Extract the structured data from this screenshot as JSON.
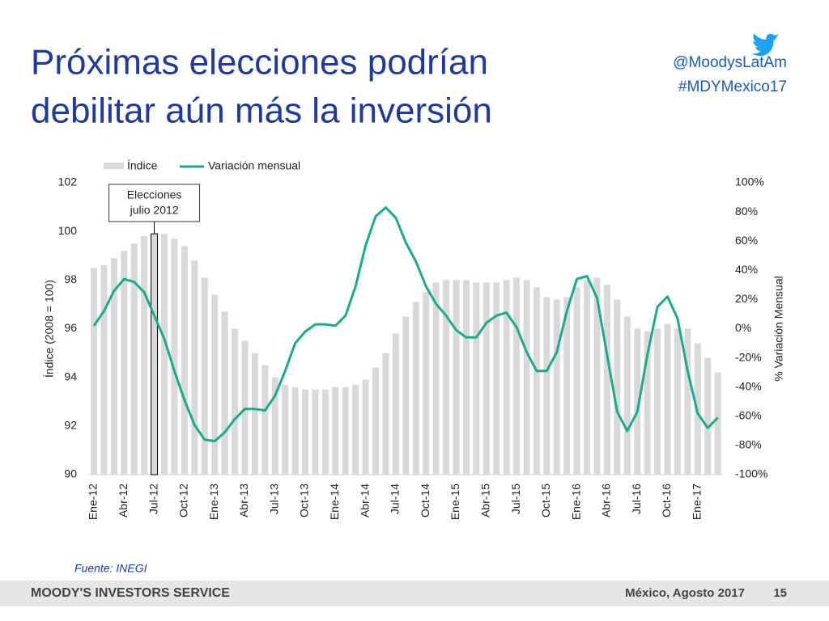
{
  "slide": {
    "title": [
      "Próximas elecciones podrían",
      "debilitar aún más la inversión"
    ],
    "handles": [
      "@MoodysLatAm",
      "#MDYMexico17"
    ],
    "source": "Fuente: INEGI",
    "footer_brand": "MOODY'S INVESTORS SERVICE",
    "footer_place": "México, Agosto 2017",
    "page": "15"
  },
  "chart_data": {
    "type": "bar",
    "categories": [
      "Ene-12",
      null,
      null,
      "Abr-12",
      null,
      null,
      "Jul-12",
      null,
      null,
      "Oct-12",
      null,
      null,
      "Ene-13",
      null,
      null,
      "Abr-13",
      null,
      null,
      "Jul-13",
      null,
      null,
      "Oct-13",
      null,
      null,
      "Ene-14",
      null,
      null,
      "Abr-14",
      null,
      null,
      "Jul-14",
      null,
      null,
      "Oct-14",
      null,
      null,
      "Ene-15",
      null,
      null,
      "Abr-15",
      null,
      null,
      "Jul-15",
      null,
      null,
      "Oct-15",
      null,
      null,
      "Ene-16",
      null,
      null,
      "Abr-16",
      null,
      null,
      "Jul-16",
      null,
      null,
      "Oct-16",
      null,
      null,
      "Ene-17",
      null,
      null
    ],
    "series": [
      {
        "name": "Índice",
        "color": "#d9d9d9",
        "values": [
          98.5,
          98.6,
          98.9,
          99.2,
          99.5,
          99.8,
          99.9,
          99.9,
          99.7,
          99.4,
          98.8,
          98.1,
          97.4,
          96.7,
          96.0,
          95.5,
          95.0,
          94.5,
          94.0,
          93.7,
          93.6,
          93.5,
          93.5,
          93.5,
          93.6,
          93.6,
          93.7,
          93.9,
          94.4,
          95.0,
          95.8,
          96.5,
          97.1,
          97.5,
          97.9,
          98.0,
          98.0,
          98.0,
          97.9,
          97.9,
          97.9,
          98.0,
          98.1,
          98.0,
          97.7,
          97.3,
          97.2,
          97.3,
          97.7,
          98.0,
          98.1,
          97.8,
          97.2,
          96.5,
          96.0,
          95.9,
          96.0,
          96.2,
          96.0,
          96.0,
          95.4,
          94.8,
          94.2
        ]
      },
      {
        "name": "Variación mensual",
        "color": "#1aab8a",
        "axis": "y2",
        "values": [
          2,
          12,
          26,
          34,
          32,
          25,
          9,
          -7,
          -29,
          -49,
          -66,
          -76,
          -77,
          -71,
          -62,
          -55,
          -55,
          -56,
          -46,
          -29,
          -10,
          -2,
          3,
          3,
          2,
          9,
          29,
          57,
          77,
          83,
          76,
          59,
          46,
          29,
          17,
          9,
          -1,
          -6,
          -6,
          4,
          9,
          11,
          1,
          -16,
          -29,
          -29,
          -16,
          12,
          34,
          36,
          21,
          -18,
          -57,
          -70,
          -57,
          -18,
          15,
          22,
          7,
          -29,
          -58,
          -68,
          -61
        ]
      }
    ],
    "ylabel": "Índice (2008 = 100)",
    "y2label": "% Variación Mensual",
    "ylim": [
      90,
      102
    ],
    "yticks": [
      90,
      92,
      94,
      96,
      98,
      100,
      102
    ],
    "y2lim": [
      -100,
      100
    ],
    "y2ticks": [
      {
        "value": -100,
        "label": "-100%"
      },
      {
        "value": -80,
        "label": "-80%"
      },
      {
        "value": -60,
        "label": "-60%"
      },
      {
        "value": -40,
        "label": "-40%"
      },
      {
        "value": -20,
        "label": "-20%"
      },
      {
        "value": 0,
        "label": "0%"
      },
      {
        "value": 20,
        "label": "20%"
      },
      {
        "value": 40,
        "label": "40%"
      },
      {
        "value": 60,
        "label": "60%"
      },
      {
        "value": 80,
        "label": "80%"
      },
      {
        "value": 100,
        "label": "100%"
      }
    ],
    "annotation": {
      "lines": [
        "Elecciones",
        "julio 2012"
      ],
      "at": "Jul-12"
    },
    "legend": "top"
  }
}
